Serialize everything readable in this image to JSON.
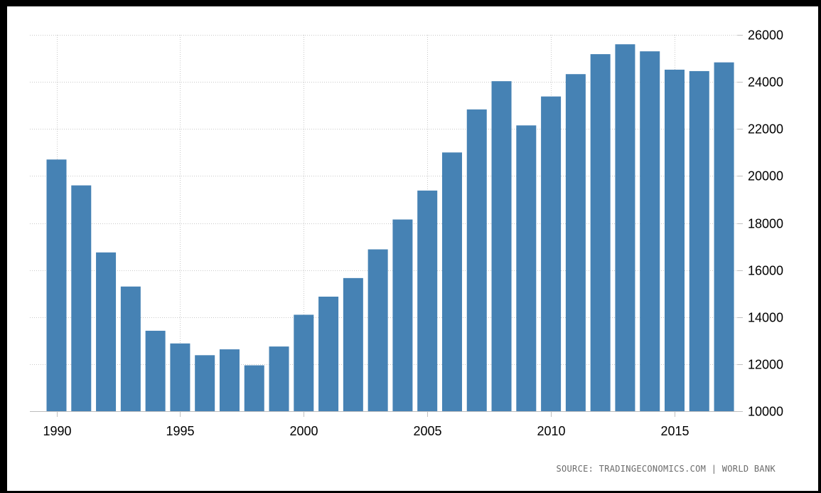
{
  "chart_data": {
    "type": "bar",
    "categories": [
      "1990",
      "1991",
      "1992",
      "1993",
      "1994",
      "1995",
      "1996",
      "1997",
      "1998",
      "1999",
      "2000",
      "2001",
      "2002",
      "2003",
      "2004",
      "2005",
      "2006",
      "2007",
      "2008",
      "2009",
      "2010",
      "2011",
      "2012",
      "2013",
      "2014",
      "2015",
      "2016",
      "2017"
    ],
    "values": [
      20700,
      19600,
      16750,
      15300,
      13420,
      12880,
      12380,
      12630,
      11950,
      12750,
      14100,
      14870,
      15660,
      16880,
      18150,
      19380,
      21000,
      22830,
      24030,
      22150,
      23380,
      24330,
      25180,
      25600,
      25300,
      24520,
      24460,
      24830
    ],
    "x_tick_labels": [
      "1990",
      "1995",
      "2000",
      "2005",
      "2010",
      "2015"
    ],
    "y_ticks": [
      10000,
      12000,
      14000,
      16000,
      18000,
      20000,
      22000,
      24000,
      26000
    ],
    "ylim": [
      10000,
      26000
    ],
    "title": "",
    "xlabel": "",
    "ylabel": "",
    "grid": true,
    "bar_color": "#4682b4",
    "grid_color": "#c9c9c9"
  },
  "source_text": "SOURCE: TRADINGECONOMICS.COM | WORLD BANK"
}
